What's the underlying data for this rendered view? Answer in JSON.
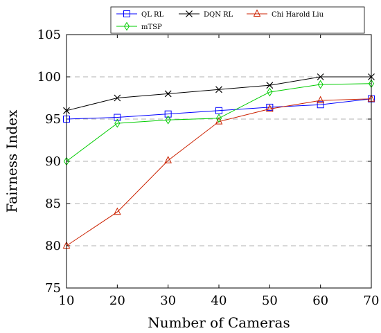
{
  "chart_data": {
    "type": "line",
    "title": "",
    "xlabel": "Number of Cameras",
    "ylabel": "Fairness Index",
    "x": [
      10,
      20,
      30,
      40,
      50,
      60,
      70
    ],
    "xlim": [
      10,
      70
    ],
    "ylim": [
      75,
      105
    ],
    "xticks": [
      10,
      20,
      30,
      40,
      50,
      60,
      70
    ],
    "yticks": [
      75,
      80,
      85,
      90,
      95,
      100,
      105
    ],
    "grid": "horizontal dashed",
    "legend_position": "top",
    "series": [
      {
        "name": "QL RL",
        "color": "#0000ff",
        "marker": "square",
        "values": [
          95.0,
          95.2,
          95.6,
          96.0,
          96.4,
          96.7,
          97.4
        ]
      },
      {
        "name": "DQN RL",
        "color": "#000000",
        "marker": "x",
        "values": [
          96.0,
          97.5,
          98.0,
          98.5,
          99.0,
          100.0,
          100.0
        ]
      },
      {
        "name": "Chi Harold Liu",
        "color": "#cc2200",
        "marker": "triangle",
        "values": [
          80.0,
          84.0,
          90.1,
          94.7,
          96.2,
          97.2,
          97.4
        ]
      },
      {
        "name": "mTSP",
        "color": "#00cc00",
        "marker": "diamond",
        "values": [
          90.0,
          94.5,
          94.9,
          95.1,
          98.2,
          99.1,
          99.2
        ]
      }
    ]
  }
}
